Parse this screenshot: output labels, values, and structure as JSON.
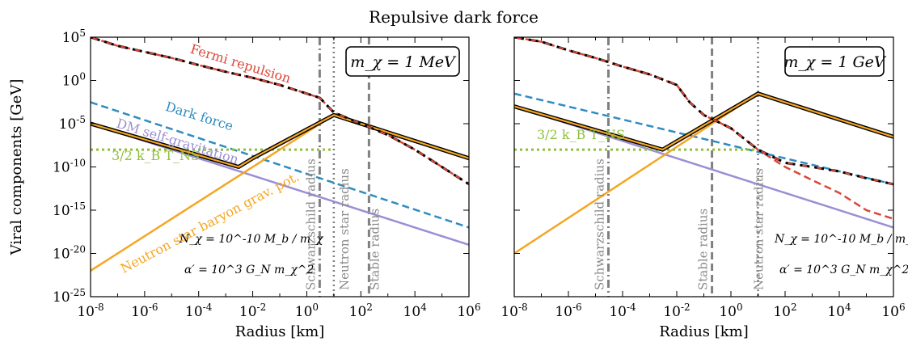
{
  "figure": {
    "title": "Repulsive dark force"
  },
  "colors": {
    "fermi": "#d9473a",
    "dark_force": "#2f8cc0",
    "dm_self": "#9b8fd4",
    "baryon": "#f5a623",
    "kt": "#8fbf3c",
    "total": "#000000",
    "vline": "#808080"
  },
  "chart_data": [
    {
      "type": "line",
      "panel": "left",
      "mass_label": "m_χ = 1 MeV",
      "xlabel": "Radius [km]",
      "ylabel": "Viral components [GeV]",
      "x_scale": "log",
      "y_scale": "log",
      "xlim": [
        1e-08,
        1000000.0
      ],
      "ylim": [
        1e-25,
        100000.0
      ],
      "x_tick_exponents": [
        -8,
        -6,
        -4,
        -2,
        0,
        2,
        4,
        6
      ],
      "y_tick_exponents": [
        5,
        0,
        -5,
        -10,
        -15,
        -20,
        -25
      ],
      "grid": false,
      "annotations": {
        "n_chi": "N_χ = 10^-10 M_b / m_χ",
        "alpha": "α′ = 10^3 G_N m_χ^2"
      },
      "series": [
        {
          "name": "Fermi repulsion",
          "key": "fermi",
          "style": "dashed",
          "x": [
            1e-08,
            1e-07,
            1e-06,
            1e-05,
            0.0001,
            0.001,
            0.01,
            0.1,
            1,
            3,
            10,
            100,
            1000,
            10000.0,
            100000.0,
            1000000.0
          ],
          "y": [
            100000.0,
            10000.0,
            2000.0,
            400,
            60,
            10,
            2,
            0.3,
            0.03,
            0.01,
            0.0002,
            1e-05,
            5e-07,
            1e-08,
            1e-10,
            1e-12
          ]
        },
        {
          "name": "Dark force",
          "key": "dark_force",
          "style": "dashed",
          "x": [
            1e-08,
            1000000.0
          ],
          "y": [
            0.003,
            1e-17
          ]
        },
        {
          "name": "DM self-gravitation",
          "key": "dm_self",
          "style": "solid",
          "x": [
            1e-08,
            1000000.0
          ],
          "y": [
            1e-05,
            1e-19
          ]
        },
        {
          "name": "Neutron star baryon grav. pot.",
          "key": "baryon",
          "style": "solid",
          "x": [
            1e-08,
            10,
            1000000.0
          ],
          "y": [
            1e-22,
            0.0001,
            1e-09
          ]
        },
        {
          "name": "3/2 k_B T_NS",
          "key": "kt",
          "style": "dotted",
          "x": [
            1e-08,
            10
          ],
          "y": [
            1e-08,
            1e-08
          ]
        },
        {
          "name": "",
          "key": "total",
          "style": "solid",
          "x": [
            1e-08,
            0.003,
            0.01,
            10,
            1000000.0
          ],
          "y": [
            1e-05,
            1e-10,
            1e-09,
            0.0001,
            1e-09
          ]
        },
        {
          "name": "",
          "key": "total",
          "style": "dashed",
          "x": [
            1e-08,
            1e-07,
            1e-06,
            1e-05,
            0.0001,
            0.001,
            0.01,
            0.1,
            1,
            3,
            10,
            100,
            1000,
            10000.0,
            100000.0,
            1000000.0
          ],
          "y": [
            100000.0,
            10000.0,
            2000.0,
            400,
            60,
            10,
            2,
            0.3,
            0.03,
            0.01,
            0.0002,
            1e-05,
            5e-07,
            1e-08,
            1e-10,
            1e-12
          ]
        }
      ],
      "vlines": [
        {
          "label": "Schwarzschild radius",
          "x": 3,
          "style": "dashdot"
        },
        {
          "label": "Neutron star radius",
          "x": 10,
          "style": "dotted"
        },
        {
          "label": "Stable radius",
          "x": 200,
          "style": "dashed"
        }
      ]
    },
    {
      "type": "line",
      "panel": "right",
      "mass_label": "m_χ = 1 GeV",
      "xlabel": "Radius [km]",
      "ylabel": "",
      "x_scale": "log",
      "y_scale": "log",
      "xlim": [
        1e-08,
        1000000.0
      ],
      "ylim": [
        1e-25,
        100000.0
      ],
      "x_tick_exponents": [
        -8,
        -6,
        -4,
        -2,
        0,
        2,
        4,
        6
      ],
      "y_tick_exponents": [
        5,
        0,
        -5,
        -10,
        -15,
        -20,
        -25
      ],
      "grid": false,
      "annotations": {
        "n_chi": "N_χ = 10^-10 M_b / m_χ",
        "alpha": "α′ = 10^3 G_N m_χ^2"
      },
      "series": [
        {
          "name": "",
          "key": "fermi",
          "style": "dashed",
          "x": [
            1e-08,
            1e-07,
            1e-06,
            1e-05,
            0.0001,
            0.001,
            0.01,
            0.03,
            0.1,
            1,
            10,
            100,
            1000,
            10000.0,
            100000.0,
            1000000.0
          ],
          "y": [
            100000.0,
            30000.0,
            3000.0,
            400,
            40,
            5,
            0.3,
            0.003,
            0.0001,
            3e-06,
            1e-08,
            1e-10,
            3e-12,
            1e-13,
            1e-15,
            1e-16
          ]
        },
        {
          "name": "",
          "key": "dark_force",
          "style": "dashed",
          "x": [
            1e-08,
            1000000.0
          ],
          "y": [
            0.03,
            1e-12
          ]
        },
        {
          "name": "",
          "key": "dm_self",
          "style": "solid",
          "x": [
            1e-08,
            1000000.0
          ],
          "y": [
            0.001,
            1e-17
          ]
        },
        {
          "name": "",
          "key": "baryon",
          "style": "solid",
          "x": [
            1e-08,
            10,
            1000000.0
          ],
          "y": [
            1e-20,
            0.03,
            3e-07
          ]
        },
        {
          "name": "3/2 k_B T_NS",
          "key": "kt",
          "style": "dotted",
          "x": [
            1e-08,
            10
          ],
          "y": [
            1e-08,
            1e-08
          ]
        },
        {
          "name": "",
          "key": "total",
          "style": "solid",
          "x": [
            1e-08,
            0.003,
            10,
            1000000.0
          ],
          "y": [
            0.001,
            1e-08,
            0.03,
            3e-07
          ]
        },
        {
          "name": "",
          "key": "total",
          "style": "dashed",
          "x": [
            1e-08,
            1e-07,
            1e-06,
            1e-05,
            0.0001,
            0.001,
            0.01,
            0.03,
            0.1,
            1,
            10,
            100,
            1000,
            10000.0,
            100000.0,
            1000000.0
          ],
          "y": [
            100000.0,
            30000.0,
            3000.0,
            400,
            40,
            5,
            0.3,
            0.003,
            0.0001,
            3e-06,
            1e-08,
            3e-10,
            1e-10,
            3e-11,
            5e-12,
            1e-12
          ]
        }
      ],
      "vlines": [
        {
          "label": "Schwarzschild radius",
          "x": 3e-05,
          "style": "dashdot"
        },
        {
          "label": "Stable radius",
          "x": 0.2,
          "style": "dashed"
        },
        {
          "label": "Neutron star radius",
          "x": 10,
          "style": "dotted"
        }
      ]
    }
  ]
}
